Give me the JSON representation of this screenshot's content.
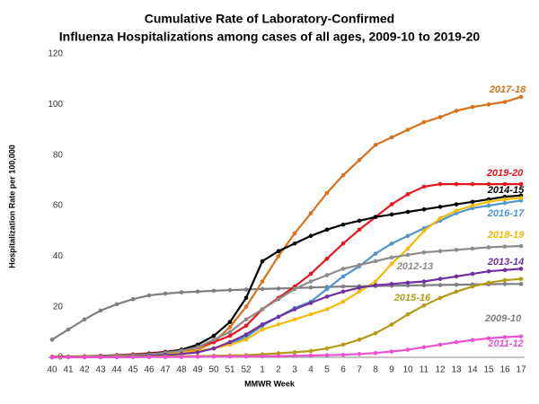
{
  "chart_data": {
    "type": "line",
    "title": [
      "Cumulative Rate of Laboratory-Confirmed",
      "Influenza Hospitalizations among cases of all ages, 2009-10 to 2019-20"
    ],
    "x_label": "MMWR Week",
    "y_label": "Hospitalization  Rate  per 100,000",
    "categories": [
      "40",
      "41",
      "42",
      "43",
      "44",
      "45",
      "46",
      "47",
      "48",
      "49",
      "50",
      "51",
      "52",
      "1",
      "2",
      "3",
      "4",
      "5",
      "6",
      "7",
      "8",
      "9",
      "10",
      "11",
      "12",
      "13",
      "14",
      "15",
      "16",
      "17"
    ],
    "ylim": [
      0,
      120
    ],
    "yticks": [
      0,
      20,
      40,
      60,
      80,
      100,
      120
    ],
    "series": [
      {
        "name": "2009-10",
        "color": "#7f7f7f",
        "values": [
          7,
          11,
          15,
          18.5,
          21,
          23,
          24.5,
          25.2,
          25.7,
          26,
          26.3,
          26.6,
          26.8,
          27,
          27.2,
          27.4,
          27.6,
          27.8,
          28,
          28.1,
          28.2,
          28.3,
          28.4,
          28.5,
          28.6,
          28.7,
          28.8,
          28.9,
          29,
          29
        ]
      },
      {
        "name": "2017-18",
        "color": "#d8711c",
        "values": [
          0.2,
          0.3,
          0.4,
          0.6,
          0.8,
          1,
          1.3,
          1.7,
          2.3,
          3,
          6,
          12,
          20,
          30,
          40,
          49,
          57,
          65,
          72,
          78,
          84,
          87,
          90,
          93,
          95,
          97.5,
          99,
          100,
          101,
          103
        ]
      },
      {
        "name": "2019-20",
        "color": "#e8141b",
        "values": [
          0.2,
          0.3,
          0.4,
          0.6,
          0.9,
          1.2,
          1.6,
          2.2,
          3,
          4.2,
          6,
          8.5,
          12.5,
          19,
          23.5,
          28,
          33,
          39,
          45,
          50.5,
          55.5,
          60.5,
          64.5,
          67.5,
          68.5,
          68.5,
          68.5,
          68.5,
          68.5,
          68.5
        ]
      },
      {
        "name": "2014-15",
        "color": "#000000",
        "values": [
          0.1,
          0.2,
          0.3,
          0.5,
          0.7,
          1,
          1.4,
          2,
          3,
          5,
          8.5,
          14,
          23.5,
          38,
          42,
          45,
          48,
          50.5,
          52.5,
          54,
          55.5,
          56.5,
          57.5,
          58.5,
          59.5,
          60.5,
          61.5,
          62.5,
          63.5,
          64
        ]
      },
      {
        "name": "2016-17",
        "color": "#4f94cd",
        "values": [
          0,
          0.1,
          0.2,
          0.3,
          0.4,
          0.6,
          0.8,
          1.1,
          1.5,
          2.2,
          3.5,
          5.5,
          8,
          12.5,
          16,
          19.5,
          22,
          27,
          32,
          36,
          41,
          45,
          48,
          51,
          54,
          57,
          59,
          60,
          61,
          62
        ]
      },
      {
        "name": "2018-19",
        "color": "#f2bd0a",
        "values": [
          0,
          0.1,
          0.2,
          0.3,
          0.4,
          0.6,
          0.9,
          1.3,
          1.8,
          2.5,
          3.5,
          5,
          7,
          11,
          13,
          15,
          17,
          19,
          22,
          26,
          30,
          37,
          43,
          50,
          55,
          58,
          60,
          61.5,
          62.5,
          63
        ]
      },
      {
        "name": "2012-13",
        "color": "#8c8c8c",
        "values": [
          0.1,
          0.2,
          0.3,
          0.5,
          0.7,
          0.9,
          1.2,
          1.8,
          2.6,
          4,
          7,
          10,
          15,
          19,
          23,
          27,
          30,
          32.5,
          35,
          36.5,
          38,
          39.5,
          40.5,
          41.5,
          42,
          42.5,
          43,
          43.5,
          43.8,
          44
        ]
      },
      {
        "name": "2013-14",
        "color": "#7030a0",
        "values": [
          0,
          0.1,
          0.1,
          0.2,
          0.3,
          0.4,
          0.6,
          0.9,
          1.3,
          2,
          3.5,
          6,
          9,
          13,
          16,
          19,
          21.5,
          24,
          26,
          27.5,
          28.5,
          29,
          29.5,
          30,
          31,
          32,
          33,
          34,
          34.5,
          35
        ]
      },
      {
        "name": "2015-16",
        "color": "#b59a16",
        "values": [
          0.05,
          0.1,
          0.1,
          0.15,
          0.2,
          0.25,
          0.3,
          0.35,
          0.4,
          0.5,
          0.6,
          0.7,
          0.85,
          1.2,
          1.6,
          2,
          2.5,
          3.5,
          5,
          7,
          9.5,
          13,
          17,
          20.5,
          23.5,
          26,
          28,
          29.5,
          30.5,
          31
        ]
      },
      {
        "name": "2011-12",
        "color": "#ea52d2",
        "values": [
          0,
          0,
          0,
          0,
          0,
          0.05,
          0.1,
          0.1,
          0.15,
          0.2,
          0.25,
          0.3,
          0.35,
          0.4,
          0.5,
          0.6,
          0.7,
          0.85,
          1,
          1.3,
          1.7,
          2.3,
          3,
          4,
          5,
          6,
          6.8,
          7.5,
          8,
          8.3
        ]
      }
    ]
  }
}
